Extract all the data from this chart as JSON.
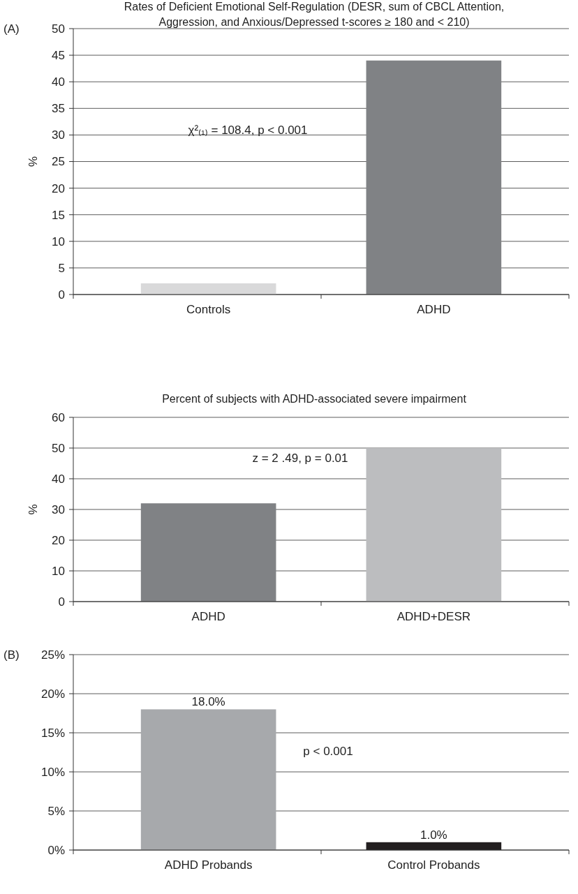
{
  "chart_data": [
    {
      "type": "bar",
      "title": "Rates of Deficient Emotional Self-Regulation (DESR, sum of CBCL Attention, Aggression, and Anxious/Depressed t-scores ≥ 180 and < 210)",
      "ylabel": "%",
      "categories": [
        "Controls",
        "ADHD"
      ],
      "values": [
        2.1,
        44
      ],
      "colors": [
        "#d9d9da",
        "#808285"
      ],
      "ylim": [
        0,
        50
      ],
      "yticks": [
        0,
        5,
        10,
        15,
        20,
        25,
        30,
        35,
        40,
        45,
        50
      ],
      "grid": "y",
      "annotations": [
        "(A)",
        "χ²₍₁₎ = 108.4, p < 0.001"
      ]
    },
    {
      "type": "bar",
      "title": "Percent of subjects with ADHD-associated severe impairment",
      "ylabel": "%",
      "categories": [
        "ADHD",
        "ADHD+DESR"
      ],
      "values": [
        32,
        50
      ],
      "colors": [
        "#808285",
        "#bcbdbf"
      ],
      "ylim": [
        0,
        60
      ],
      "yticks": [
        0,
        10,
        20,
        30,
        40,
        50,
        60
      ],
      "grid": "y",
      "annotations": [
        "z = 2 .49, p = 0.01"
      ]
    },
    {
      "type": "bar",
      "categories": [
        "ADHD Probands",
        "Control Probands"
      ],
      "values": [
        18,
        1
      ],
      "value_labels": [
        "18.0%",
        "1.0%"
      ],
      "colors": [
        "#a7a9ac",
        "#231f20"
      ],
      "ylim": [
        0,
        25
      ],
      "yticks": [
        {
          "value": 0,
          "label": "0%"
        },
        {
          "value": 5,
          "label": "5%"
        },
        {
          "value": 10,
          "label": "10%"
        },
        {
          "value": 15,
          "label": "15%"
        },
        {
          "value": 20,
          "label": "20%"
        },
        {
          "value": 25,
          "label": "25%"
        }
      ],
      "grid": "y",
      "annotations": [
        "(B)",
        "p < 0.001"
      ]
    }
  ]
}
